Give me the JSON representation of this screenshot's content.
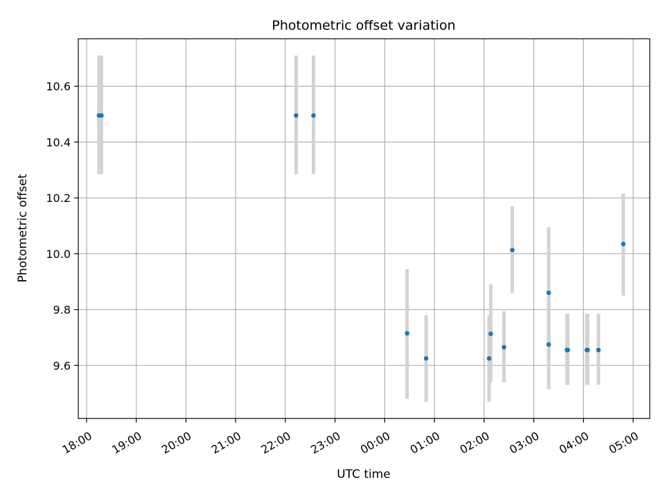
{
  "chart_data": {
    "type": "scatter",
    "title": "Photometric offset variation",
    "xlabel": "UTC time",
    "ylabel": "Photometric offset",
    "x_axis_type": "time",
    "x_start_label": "18:00",
    "xlim": [
      "17:50",
      "05:20"
    ],
    "ylim": [
      9.41,
      10.77
    ],
    "x_tick_labels": [
      "18:00",
      "19:00",
      "20:00",
      "21:00",
      "22:00",
      "23:00",
      "00:00",
      "01:00",
      "02:00",
      "03:00",
      "04:00",
      "05:00"
    ],
    "y_ticks": [
      9.6,
      9.8,
      10.0,
      10.2,
      10.4,
      10.6
    ],
    "y_tick_labels": [
      "9.6",
      "9.8",
      "10.0",
      "10.2",
      "10.4",
      "10.6"
    ],
    "grid": true,
    "colors": {
      "point": "#1f77b4",
      "errorbar": "#d3d3d3",
      "grid": "#b0b0b0"
    },
    "points": [
      {
        "time": "18:15",
        "y": 10.495,
        "y_low": 10.285,
        "y_high": 10.71
      },
      {
        "time": "18:18",
        "y": 10.495,
        "y_low": 10.285,
        "y_high": 10.71
      },
      {
        "time": "22:13",
        "y": 10.495,
        "y_low": 10.285,
        "y_high": 10.71
      },
      {
        "time": "22:34",
        "y": 10.495,
        "y_low": 10.285,
        "y_high": 10.71
      },
      {
        "time": "00:27",
        "y": 9.715,
        "y_low": 9.48,
        "y_high": 9.945
      },
      {
        "time": "00:50",
        "y": 9.625,
        "y_low": 9.47,
        "y_high": 9.78
      },
      {
        "time": "02:06",
        "y": 9.625,
        "y_low": 9.47,
        "y_high": 9.78
      },
      {
        "time": "02:08",
        "y": 9.713,
        "y_low": 9.54,
        "y_high": 9.89
      },
      {
        "time": "02:24",
        "y": 9.665,
        "y_low": 9.54,
        "y_high": 9.795
      },
      {
        "time": "02:34",
        "y": 10.013,
        "y_low": 9.86,
        "y_high": 10.17
      },
      {
        "time": "03:18",
        "y": 9.86,
        "y_low": 9.62,
        "y_high": 10.095
      },
      {
        "time": "03:18",
        "y": 9.675,
        "y_low": 9.515,
        "y_high": 9.84
      },
      {
        "time": "03:40",
        "y": 9.655,
        "y_low": 9.53,
        "y_high": 9.785
      },
      {
        "time": "03:41",
        "y": 9.655,
        "y_low": 9.53,
        "y_high": 9.785
      },
      {
        "time": "04:04",
        "y": 9.655,
        "y_low": 9.53,
        "y_high": 9.785
      },
      {
        "time": "04:05",
        "y": 9.655,
        "y_low": 9.53,
        "y_high": 9.785
      },
      {
        "time": "04:18",
        "y": 9.655,
        "y_low": 9.53,
        "y_high": 9.785
      },
      {
        "time": "04:48",
        "y": 10.035,
        "y_low": 9.85,
        "y_high": 10.215
      }
    ]
  }
}
